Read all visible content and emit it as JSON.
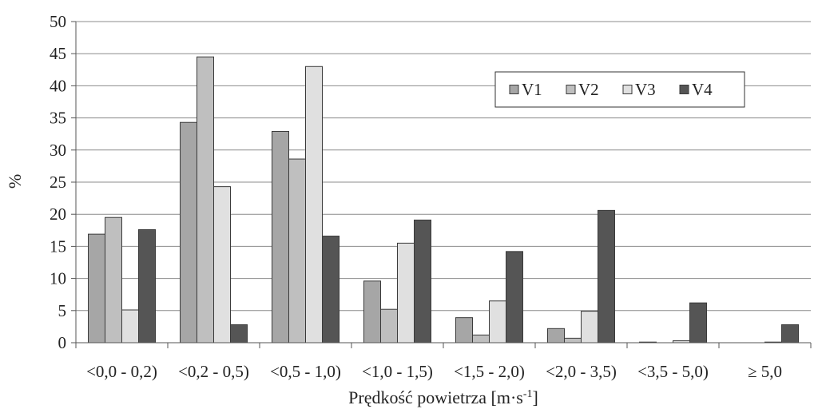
{
  "chart_data": {
    "type": "bar",
    "title": "",
    "xlabel": "Prędkość powietrza [m·s",
    "xlabel_sup": "-1",
    "xlabel_close": "]",
    "ylabel": "%",
    "ylim": [
      0,
      50
    ],
    "ytick_step": 5,
    "yticks": [
      "0",
      "5",
      "10",
      "15",
      "20",
      "25",
      "30",
      "35",
      "40",
      "45",
      "50"
    ],
    "grid": true,
    "legend_position": "top-right",
    "categories": [
      "<0,0 - 0,2)",
      "<0,2 - 0,5)",
      "<0,5 - 1,0)",
      "<1,0 - 1,5)",
      "<1,5 - 2,0)",
      "<2,0 - 3,5)",
      "<3,5 - 5,0)",
      "≥ 5,0"
    ],
    "series": [
      {
        "name": "V1",
        "color": "#a6a6a6",
        "values": [
          16.9,
          34.3,
          32.9,
          9.6,
          3.9,
          2.2,
          0.1,
          0.0
        ]
      },
      {
        "name": "V2",
        "color": "#bfbfbf",
        "values": [
          19.5,
          44.5,
          28.6,
          5.2,
          1.2,
          0.7,
          0.0,
          0.0
        ]
      },
      {
        "name": "V3",
        "color": "#e0e0e0",
        "values": [
          5.1,
          24.3,
          43.0,
          15.5,
          6.5,
          4.9,
          0.3,
          0.1
        ]
      },
      {
        "name": "V4",
        "color": "#555555",
        "values": [
          17.6,
          2.8,
          16.6,
          19.1,
          14.2,
          20.6,
          6.2,
          2.8
        ]
      }
    ]
  }
}
